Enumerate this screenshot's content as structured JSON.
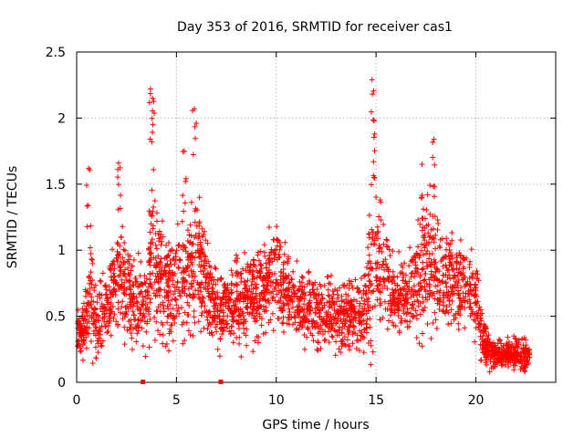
{
  "chart_data": {
    "type": "scatter",
    "title": "Day 353 of 2016, SRMTID for receiver cas1",
    "xlabel": "GPS time / hours",
    "ylabel": "SRMTID / TECUs",
    "xlim": [
      0,
      24
    ],
    "ylim": [
      0,
      2.5
    ],
    "x_ticks": [
      0,
      5,
      10,
      15,
      20
    ],
    "x_tick_labels": [
      "0",
      "5",
      "10",
      "15",
      "20"
    ],
    "y_ticks": [
      0,
      0.5,
      1,
      1.5,
      2,
      2.5
    ],
    "y_tick_labels": [
      "0",
      "0.5",
      "1",
      "1.5",
      "2",
      "2.5"
    ],
    "grid": true,
    "marker": "+",
    "color": "#ff0000",
    "envelope": {
      "hours": [
        0.0,
        0.5,
        0.7,
        1.0,
        1.5,
        2.0,
        2.2,
        2.5,
        3.0,
        3.5,
        3.8,
        4.2,
        4.6,
        5.0,
        5.5,
        5.9,
        6.3,
        6.7,
        7.0,
        7.5,
        8.0,
        8.5,
        9.0,
        9.5,
        10.0,
        10.5,
        11.0,
        11.5,
        12.0,
        12.5,
        13.0,
        13.5,
        14.0,
        14.5,
        14.8,
        15.0,
        15.3,
        15.7,
        16.0,
        16.5,
        17.0,
        17.3,
        17.6,
        17.9,
        18.3,
        18.7,
        19.0,
        19.5,
        20.0,
        20.3,
        20.6,
        21.0,
        21.5,
        22.0,
        22.5,
        22.7
      ],
      "median": [
        0.35,
        0.45,
        0.7,
        0.4,
        0.6,
        0.8,
        0.9,
        0.7,
        0.6,
        0.6,
        1.0,
        0.75,
        0.7,
        0.75,
        0.8,
        0.9,
        0.8,
        0.7,
        0.55,
        0.55,
        0.6,
        0.65,
        0.7,
        0.7,
        0.8,
        0.7,
        0.6,
        0.55,
        0.55,
        0.55,
        0.5,
        0.5,
        0.55,
        0.55,
        0.85,
        0.95,
        0.8,
        0.7,
        0.65,
        0.65,
        0.75,
        0.8,
        0.9,
        0.95,
        0.8,
        0.8,
        0.75,
        0.75,
        0.65,
        0.35,
        0.25,
        0.2,
        0.22,
        0.22,
        0.2,
        0.18
      ],
      "spread": [
        0.25,
        0.35,
        0.6,
        0.4,
        0.4,
        0.55,
        0.6,
        0.5,
        0.45,
        0.5,
        0.9,
        0.6,
        0.55,
        0.6,
        0.65,
        0.75,
        0.6,
        0.5,
        0.4,
        0.4,
        0.45,
        0.5,
        0.5,
        0.5,
        0.55,
        0.5,
        0.45,
        0.4,
        0.4,
        0.4,
        0.4,
        0.4,
        0.4,
        0.45,
        0.8,
        0.9,
        0.6,
        0.45,
        0.4,
        0.4,
        0.5,
        0.7,
        0.7,
        0.8,
        0.55,
        0.5,
        0.45,
        0.45,
        0.4,
        0.25,
        0.2,
        0.15,
        0.15,
        0.15,
        0.2,
        0.1
      ],
      "peaks": [
        {
          "x": 0.6,
          "y": 1.62
        },
        {
          "x": 2.1,
          "y": 1.66
        },
        {
          "x": 3.7,
          "y": 2.22
        },
        {
          "x": 3.8,
          "y": 2.15
        },
        {
          "x": 5.4,
          "y": 1.75
        },
        {
          "x": 5.9,
          "y": 2.07
        },
        {
          "x": 14.8,
          "y": 2.29
        },
        {
          "x": 14.9,
          "y": 1.98
        },
        {
          "x": 17.9,
          "y": 1.84
        },
        {
          "x": 17.3,
          "y": 1.65
        }
      ],
      "points_per_hour": 130
    },
    "bottom_markers_hours": [
      3.3,
      7.2
    ]
  }
}
